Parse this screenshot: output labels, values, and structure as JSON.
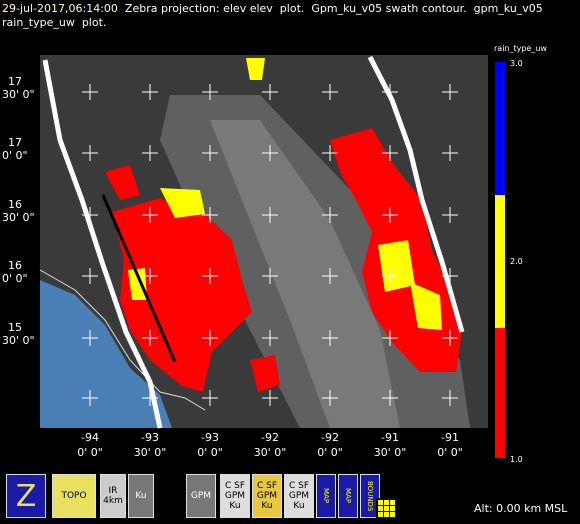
{
  "header": {
    "timestamp": "29-jul-2017,06:14:00",
    "line1": "Zebra projection: elev elev  plot.  Gpm_ku_v05 swath contour.  gpm_ku_v05",
    "line2": "rain_type_uw  plot."
  },
  "map": {
    "lat_labels": [
      {
        "deg": "17",
        "min": "30' 0\""
      },
      {
        "deg": "17",
        "min": "0' 0\""
      },
      {
        "deg": "16",
        "min": "30' 0\""
      },
      {
        "deg": "16",
        "min": "0' 0\""
      },
      {
        "deg": "15",
        "min": "30' 0\""
      }
    ],
    "lon_labels": [
      {
        "deg": "-94",
        "min": "0' 0\""
      },
      {
        "deg": "-93",
        "min": "30' 0\""
      },
      {
        "deg": "-93",
        "min": "0' 0\""
      },
      {
        "deg": "-92",
        "min": "30' 0\""
      },
      {
        "deg": "-92",
        "min": "0' 0\""
      },
      {
        "deg": "-91",
        "min": "30' 0\""
      },
      {
        "deg": "-91",
        "min": "0' 0\""
      }
    ]
  },
  "colorbar": {
    "title": "rain_type_uw",
    "labels": [
      "3.0",
      "2.0",
      "1.0"
    ]
  },
  "toolbar": {
    "icons": [
      "Z",
      "TOPO",
      "IR 4km",
      "Ku",
      "GPM",
      "C SF GPM Ku",
      "C SF GPM Ku",
      "C SF GPM Ku",
      "MAP",
      "MAP",
      "BOUNDS"
    ],
    "status": "Alt: 0.00 km MSL"
  }
}
